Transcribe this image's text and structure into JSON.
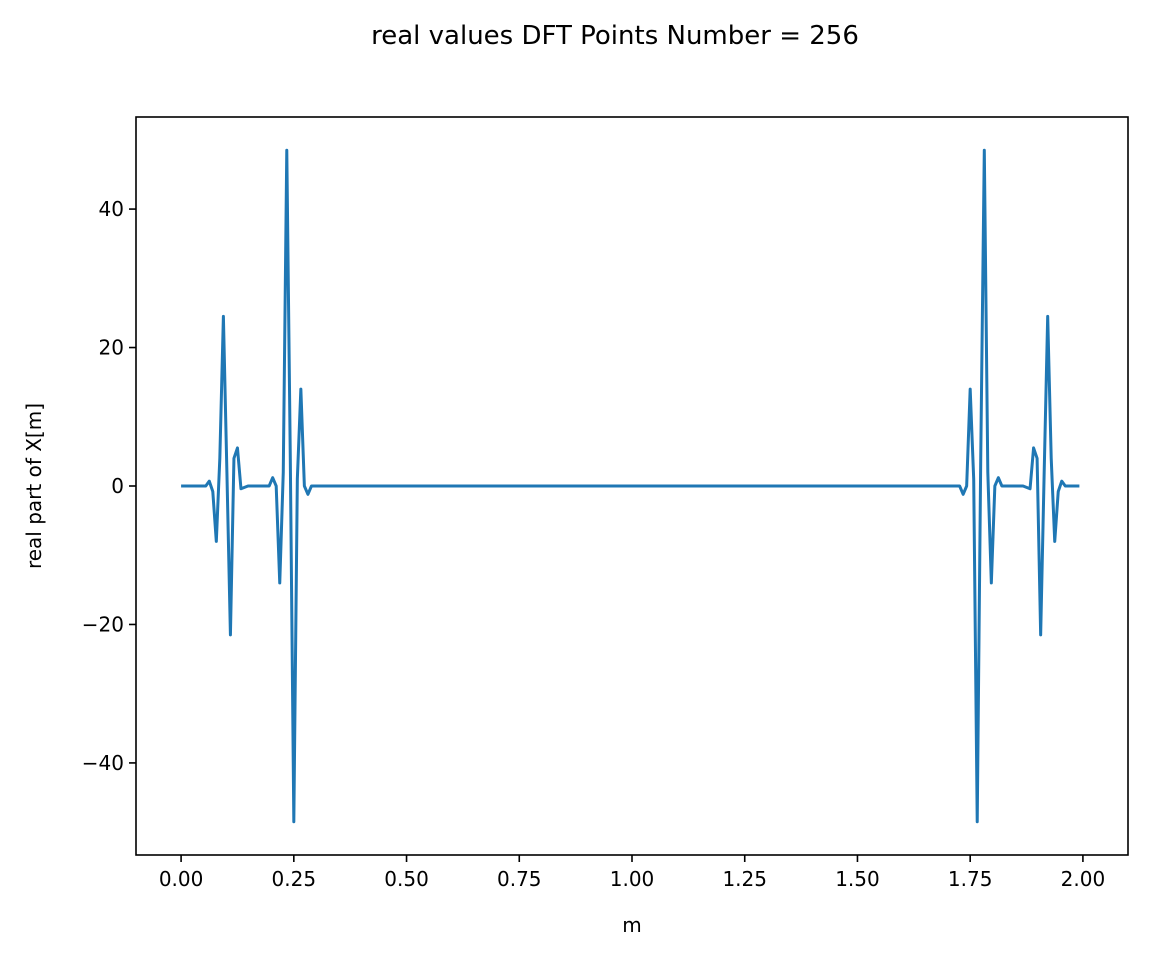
{
  "chart_data": {
    "type": "line",
    "title": "real values DFT Points Number = 256",
    "xlabel": "m",
    "ylabel": "real part of X[m]",
    "xlim": [
      -0.1,
      2.1
    ],
    "ylim": [
      -53.3,
      53.3
    ],
    "xticks": [
      0.0,
      0.25,
      0.5,
      0.75,
      1.0,
      1.25,
      1.5,
      1.75,
      2.0
    ],
    "xtick_labels": [
      "0.00",
      "0.25",
      "0.50",
      "0.75",
      "1.00",
      "1.25",
      "1.50",
      "1.75",
      "2.00"
    ],
    "yticks": [
      -40,
      -20,
      0,
      20,
      40
    ],
    "ytick_labels": [
      "−40",
      "−20",
      "0",
      "20",
      "40"
    ],
    "grid": false,
    "line_color": "#1f77b4",
    "series": [
      {
        "x": [
          0.0,
          0.0078,
          0.0156,
          0.0234,
          0.0313,
          0.0391,
          0.0469,
          0.0547,
          0.0625,
          0.0703,
          0.0781,
          0.0859,
          0.0938,
          0.1016,
          0.1094,
          0.1172,
          0.125,
          0.1328,
          0.1406,
          0.1484,
          0.1563,
          0.1641,
          0.1719,
          0.1797,
          0.1875,
          0.1953,
          0.2031,
          0.2109,
          0.2188,
          0.2266,
          0.2344,
          0.2422,
          0.25,
          0.2578,
          0.2656,
          0.2734,
          0.2813,
          0.2891,
          0.2969,
          0.3047,
          0.3125,
          0.5,
          0.75,
          1.0,
          1.25,
          1.5,
          1.6875,
          1.6953,
          1.7031,
          1.7109,
          1.7188,
          1.7266,
          1.7344,
          1.7422,
          1.75,
          1.7578,
          1.7656,
          1.7734,
          1.7813,
          1.7891,
          1.7969,
          1.8047,
          1.8125,
          1.8203,
          1.8281,
          1.8359,
          1.8438,
          1.8516,
          1.8594,
          1.8672,
          1.875,
          1.8828,
          1.8906,
          1.8984,
          1.9063,
          1.9141,
          1.9219,
          1.9297,
          1.9375,
          1.9453,
          1.9531,
          1.9609,
          1.9688,
          1.9766,
          1.9844,
          1.9922
        ],
        "y": [
          0,
          0,
          0,
          0,
          0,
          0,
          0,
          0,
          0.7,
          -0.8,
          -8,
          4,
          24.5,
          2,
          -21.5,
          4,
          5.5,
          -0.4,
          -0.2,
          0,
          0,
          0,
          0,
          0,
          0,
          0,
          1.2,
          0,
          -14,
          2,
          48.5,
          4,
          -48.5,
          1,
          14,
          0,
          -1.2,
          0,
          0,
          0,
          0,
          0,
          0,
          0,
          0,
          0,
          0,
          0,
          0,
          0,
          0,
          0,
          -1.2,
          0,
          14,
          1,
          -48.5,
          4,
          48.5,
          2,
          -14,
          0,
          1.2,
          0,
          0,
          0,
          0,
          0,
          0,
          0,
          -0.2,
          -0.4,
          5.5,
          4,
          -21.5,
          2,
          24.5,
          4,
          -8,
          -0.8,
          0.7,
          0,
          0,
          0,
          0,
          0
        ]
      }
    ]
  }
}
